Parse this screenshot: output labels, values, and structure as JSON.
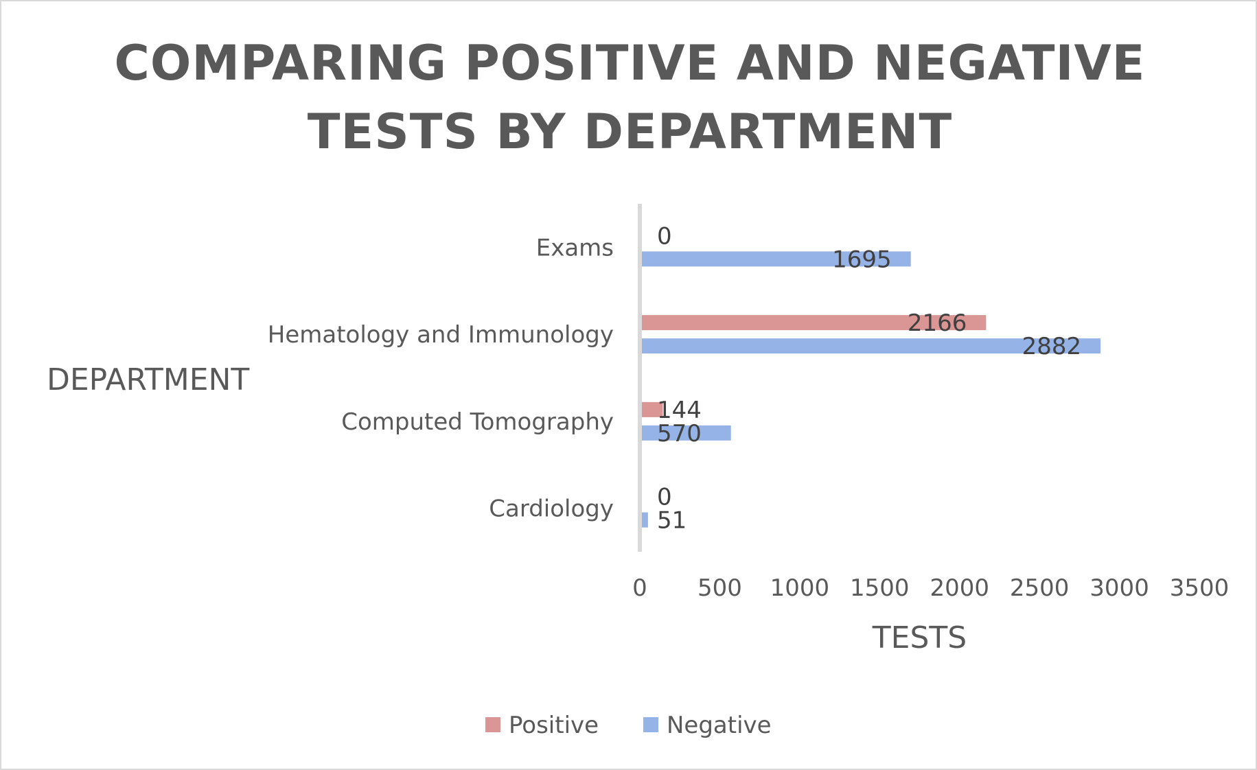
{
  "chart_data": {
    "type": "bar",
    "orientation": "horizontal",
    "title": "COMPARING POSITIVE AND NEGATIVE TESTS BY DEPARTMENT",
    "title_lines": [
      "COMPARING POSITIVE AND NEGATIVE",
      "TESTS BY DEPARTMENT"
    ],
    "xlabel": "TESTS",
    "ylabel": "DEPARTMENT",
    "categories": [
      "Exams",
      "Hematology and Immunology",
      "Computed Tomography",
      "Cardiology"
    ],
    "series": [
      {
        "name": "Positive",
        "color": "#DA9694",
        "values": [
          0,
          2166,
          144,
          0
        ]
      },
      {
        "name": "Negative",
        "color": "#95B3E6",
        "values": [
          1695,
          2882,
          570,
          51
        ]
      }
    ],
    "xlim": [
      0,
      3500
    ],
    "xticks": [
      0,
      500,
      1000,
      1500,
      2000,
      2500,
      3000,
      3500
    ],
    "grid": false,
    "legend_position": "bottom",
    "axis_line_color": "#d9d9d9"
  }
}
